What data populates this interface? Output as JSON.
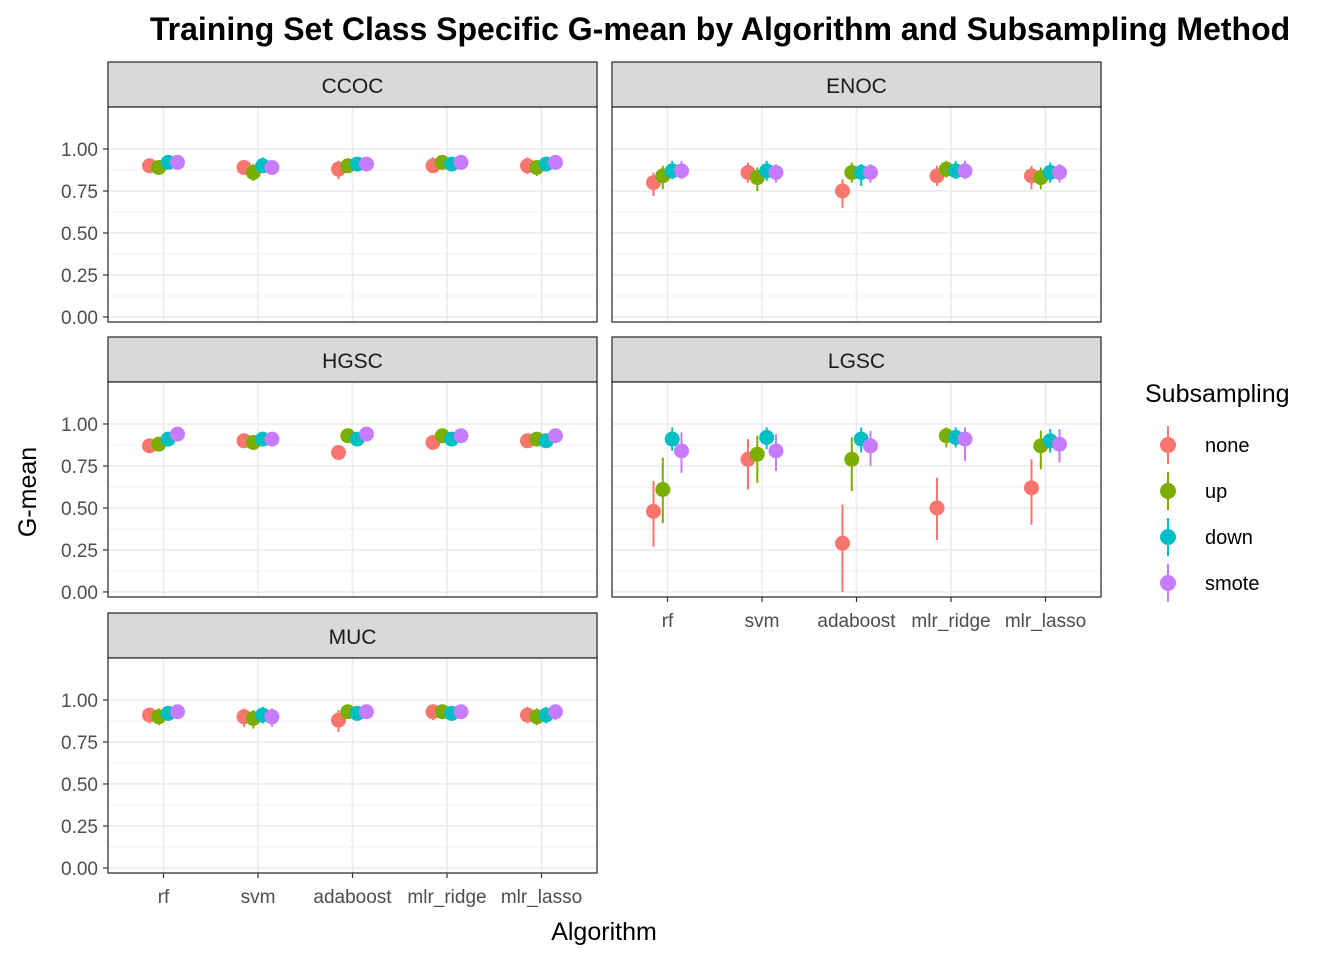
{
  "chart_data": {
    "type": "scatter",
    "title": "Training Set Class Specific G-mean by Algorithm and Subsampling Method",
    "xlabel": "Algorithm",
    "ylabel": "G-mean",
    "categories": [
      "rf",
      "svm",
      "adaboost",
      "mlr_ridge",
      "mlr_lasso"
    ],
    "y_ticks": [
      "0.00",
      "0.25",
      "0.50",
      "0.75",
      "1.00"
    ],
    "ylim": [
      -0.03,
      1.25
    ],
    "grid": true,
    "legend": {
      "title": "Subsampling",
      "position": "right",
      "entries": [
        "none",
        "up",
        "down",
        "smote"
      ],
      "colors": [
        "#F8766D",
        "#7CAE00",
        "#00BFC4",
        "#C77CFF"
      ]
    },
    "panels": [
      {
        "label": "CCOC",
        "series": [
          {
            "name": "none",
            "values": [
              0.9,
              0.89,
              0.88,
              0.9,
              0.9
            ],
            "lower": [
              0.86,
              0.85,
              0.82,
              0.86,
              0.85
            ],
            "upper": [
              0.94,
              0.93,
              0.93,
              0.95,
              0.95
            ]
          },
          {
            "name": "up",
            "values": [
              0.89,
              0.86,
              0.9,
              0.92,
              0.89
            ],
            "lower": [
              0.85,
              0.81,
              0.86,
              0.89,
              0.84
            ],
            "upper": [
              0.93,
              0.91,
              0.94,
              0.96,
              0.93
            ]
          },
          {
            "name": "down",
            "values": [
              0.92,
              0.9,
              0.91,
              0.91,
              0.91
            ],
            "lower": [
              0.88,
              0.86,
              0.87,
              0.87,
              0.87
            ],
            "upper": [
              0.96,
              0.95,
              0.95,
              0.95,
              0.95
            ]
          },
          {
            "name": "smote",
            "values": [
              0.92,
              0.89,
              0.91,
              0.92,
              0.92
            ],
            "lower": [
              0.88,
              0.85,
              0.87,
              0.88,
              0.88
            ],
            "upper": [
              0.96,
              0.93,
              0.95,
              0.96,
              0.96
            ]
          }
        ]
      },
      {
        "label": "ENOC",
        "series": [
          {
            "name": "none",
            "values": [
              0.8,
              0.86,
              0.75,
              0.84,
              0.84
            ],
            "lower": [
              0.72,
              0.8,
              0.65,
              0.78,
              0.76
            ],
            "upper": [
              0.86,
              0.92,
              0.82,
              0.9,
              0.9
            ]
          },
          {
            "name": "up",
            "values": [
              0.84,
              0.83,
              0.86,
              0.88,
              0.83
            ],
            "lower": [
              0.76,
              0.75,
              0.8,
              0.83,
              0.76
            ],
            "upper": [
              0.9,
              0.89,
              0.92,
              0.93,
              0.89
            ]
          },
          {
            "name": "down",
            "values": [
              0.87,
              0.87,
              0.86,
              0.87,
              0.86
            ],
            "lower": [
              0.82,
              0.81,
              0.78,
              0.82,
              0.8
            ],
            "upper": [
              0.93,
              0.93,
              0.91,
              0.93,
              0.92
            ]
          },
          {
            "name": "smote",
            "values": [
              0.87,
              0.86,
              0.86,
              0.87,
              0.86
            ],
            "lower": [
              0.82,
              0.8,
              0.8,
              0.82,
              0.8
            ],
            "upper": [
              0.93,
              0.91,
              0.91,
              0.93,
              0.91
            ]
          }
        ]
      },
      {
        "label": "HGSC",
        "series": [
          {
            "name": "none",
            "values": [
              0.87,
              0.9,
              0.83,
              0.89,
              0.9
            ],
            "lower": [
              0.85,
              0.88,
              0.8,
              0.87,
              0.88
            ],
            "upper": [
              0.89,
              0.92,
              0.85,
              0.91,
              0.92
            ]
          },
          {
            "name": "up",
            "values": [
              0.88,
              0.89,
              0.93,
              0.93,
              0.91
            ],
            "lower": [
              0.86,
              0.87,
              0.91,
              0.91,
              0.89
            ],
            "upper": [
              0.9,
              0.91,
              0.95,
              0.95,
              0.93
            ]
          },
          {
            "name": "down",
            "values": [
              0.91,
              0.91,
              0.91,
              0.91,
              0.9
            ],
            "lower": [
              0.89,
              0.89,
              0.89,
              0.89,
              0.88
            ],
            "upper": [
              0.93,
              0.93,
              0.93,
              0.93,
              0.92
            ]
          },
          {
            "name": "smote",
            "values": [
              0.94,
              0.91,
              0.94,
              0.93,
              0.93
            ],
            "lower": [
              0.92,
              0.89,
              0.92,
              0.91,
              0.91
            ],
            "upper": [
              0.96,
              0.93,
              0.96,
              0.95,
              0.95
            ]
          }
        ]
      },
      {
        "label": "LGSC",
        "series": [
          {
            "name": "none",
            "values": [
              0.48,
              0.79,
              0.29,
              0.5,
              0.62
            ],
            "lower": [
              0.27,
              0.61,
              0.0,
              0.31,
              0.4
            ],
            "upper": [
              0.66,
              0.91,
              0.52,
              0.68,
              0.79
            ]
          },
          {
            "name": "up",
            "values": [
              0.61,
              0.82,
              0.79,
              0.93,
              0.87
            ],
            "lower": [
              0.41,
              0.65,
              0.6,
              0.86,
              0.73
            ],
            "upper": [
              0.8,
              0.93,
              0.92,
              0.98,
              0.96
            ]
          },
          {
            "name": "down",
            "values": [
              0.91,
              0.92,
              0.91,
              0.92,
              0.9
            ],
            "lower": [
              0.84,
              0.85,
              0.83,
              0.86,
              0.83
            ],
            "upper": [
              0.98,
              0.98,
              0.98,
              0.98,
              0.97
            ]
          },
          {
            "name": "smote",
            "values": [
              0.84,
              0.84,
              0.87,
              0.91,
              0.88
            ],
            "lower": [
              0.71,
              0.72,
              0.75,
              0.78,
              0.77
            ],
            "upper": [
              0.95,
              0.94,
              0.96,
              0.98,
              0.97
            ]
          }
        ]
      },
      {
        "label": "MUC",
        "series": [
          {
            "name": "none",
            "values": [
              0.91,
              0.9,
              0.88,
              0.93,
              0.91
            ],
            "lower": [
              0.86,
              0.84,
              0.81,
              0.88,
              0.86
            ],
            "upper": [
              0.95,
              0.95,
              0.94,
              0.97,
              0.96
            ]
          },
          {
            "name": "up",
            "values": [
              0.9,
              0.89,
              0.93,
              0.93,
              0.9
            ],
            "lower": [
              0.85,
              0.83,
              0.89,
              0.89,
              0.85
            ],
            "upper": [
              0.95,
              0.94,
              0.97,
              0.97,
              0.95
            ]
          },
          {
            "name": "down",
            "values": [
              0.92,
              0.91,
              0.92,
              0.92,
              0.91
            ],
            "lower": [
              0.88,
              0.86,
              0.88,
              0.88,
              0.86
            ],
            "upper": [
              0.96,
              0.96,
              0.96,
              0.96,
              0.96
            ]
          },
          {
            "name": "smote",
            "values": [
              0.93,
              0.9,
              0.93,
              0.93,
              0.93
            ],
            "lower": [
              0.89,
              0.84,
              0.89,
              0.89,
              0.88
            ],
            "upper": [
              0.97,
              0.95,
              0.97,
              0.97,
              0.97
            ]
          }
        ]
      }
    ]
  }
}
